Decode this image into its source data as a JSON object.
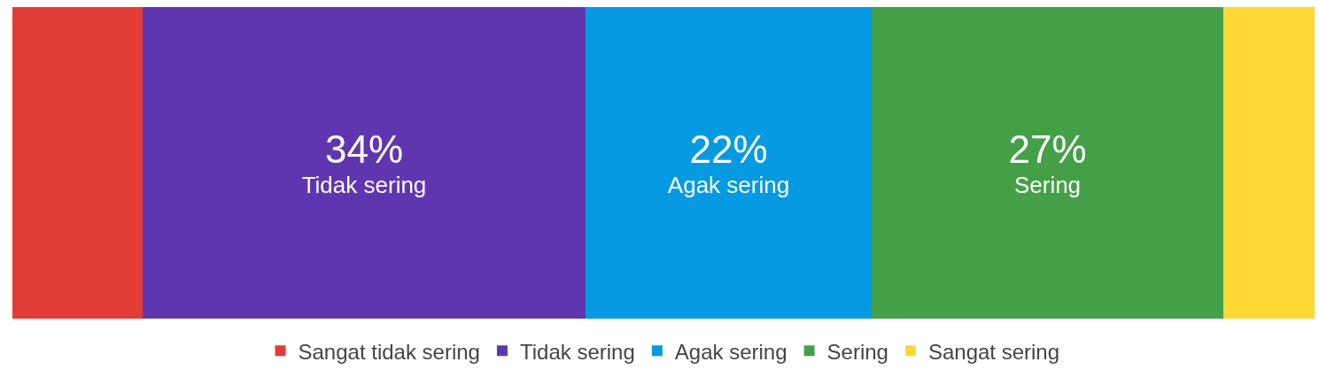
{
  "chart_data": {
    "type": "bar",
    "stacked": true,
    "orientation": "horizontal",
    "categories": [
      null
    ],
    "series": [
      {
        "name": "Sangat tidak sering",
        "color": "#e33b36",
        "values": [
          10
        ],
        "value_labels": [
          null
        ]
      },
      {
        "name": "Tidak sering",
        "color": "#6036b0",
        "values": [
          34
        ],
        "value_labels": [
          "34%"
        ]
      },
      {
        "name": "Agak sering",
        "color": "#069ae3",
        "values": [
          22
        ],
        "value_labels": [
          "22%"
        ]
      },
      {
        "name": "Sering",
        "color": "#44a047",
        "values": [
          27
        ],
        "value_labels": [
          "27%"
        ]
      },
      {
        "name": "Sangat sering",
        "color": "#fdd835",
        "values": [
          7
        ],
        "value_labels": [
          null
        ]
      }
    ],
    "xlim": [
      0,
      100
    ],
    "legend": "bottom"
  }
}
